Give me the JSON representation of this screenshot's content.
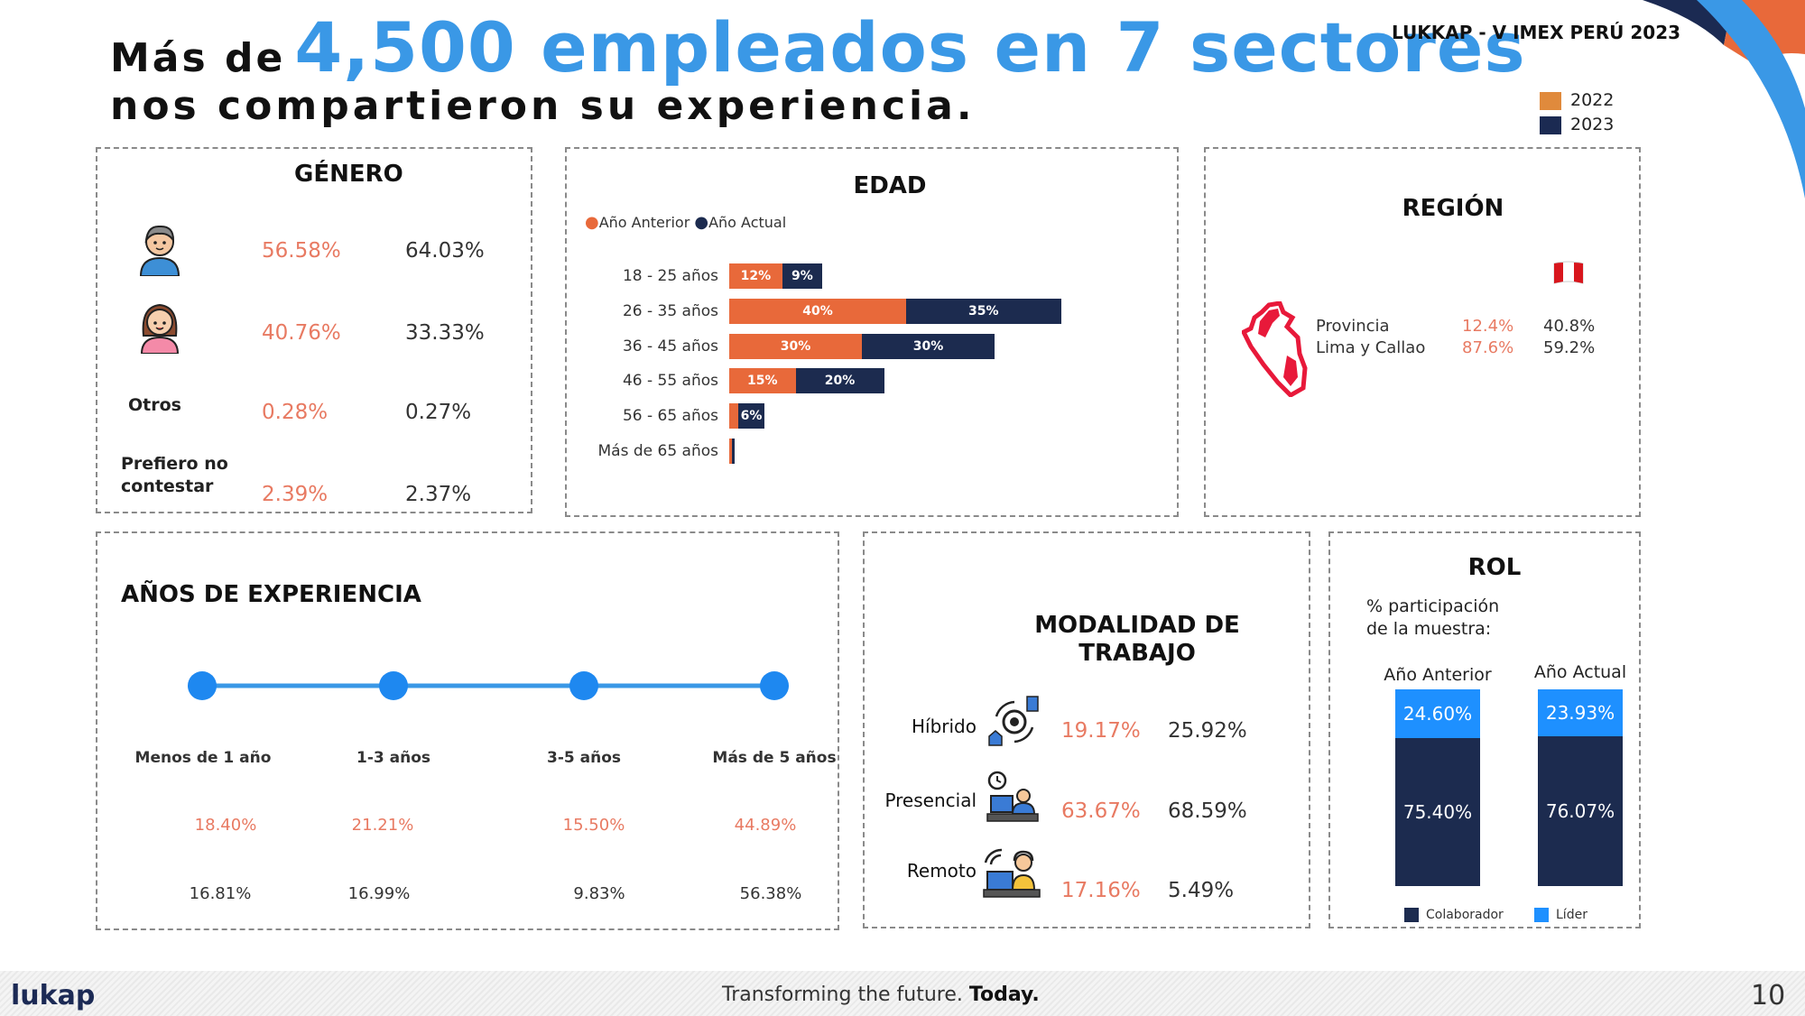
{
  "header": {
    "title_prefix": "Más de",
    "title_highlight": "4,500 empleados en 7 sectores",
    "title_line2": "nos compartieron su experiencia.",
    "event": "LUKKAP - V IMEX PERÚ 2023",
    "legend": [
      {
        "label": "2022",
        "color": "#e08a3c"
      },
      {
        "label": "2023",
        "color": "#1b2a52"
      }
    ]
  },
  "footer": {
    "logo": "lukap",
    "tagline_main": "Transforming the future.",
    "tagline_bold": "Today.",
    "page": "10"
  },
  "colors": {
    "prev": "#e8693a",
    "curr": "#1c2b4f",
    "lider": "#1e90ff",
    "accent_blue": "#3a98e6"
  },
  "genero": {
    "title": "GÉNERO",
    "rows": [
      {
        "label": "",
        "icon": "male-avatar-icon",
        "prev": "56.58%",
        "curr": "64.03%"
      },
      {
        "label": "",
        "icon": "female-avatar-icon",
        "prev": "40.76%",
        "curr": "33.33%"
      },
      {
        "label": "Otros",
        "prev": "0.28%",
        "curr": "0.27%"
      },
      {
        "label": "Prefiero no contestar",
        "prev": "2.39%",
        "curr": "2.37%"
      }
    ]
  },
  "region": {
    "title": "REGIÓN",
    "map_icon": "peru-map-icon",
    "flag_icon": "peru-flag-icon",
    "rows": [
      {
        "label": "Provincia",
        "prev": "12.4%",
        "curr": "40.8%"
      },
      {
        "label": "Lima y Callao",
        "prev": "87.6%",
        "curr": "59.2%"
      }
    ]
  },
  "experiencia": {
    "title": "AÑOS DE EXPERIENCIA",
    "items": [
      {
        "label": "Menos de 1 año",
        "prev": "18.40%",
        "curr": "16.81%"
      },
      {
        "label": "1-3 años",
        "prev": "21.21%",
        "curr": "16.99%"
      },
      {
        "label": "3-5 años",
        "prev": "15.50%",
        "curr": "9.83%"
      },
      {
        "label": "Más de 5 años",
        "prev": "44.89%",
        "curr": "56.38%"
      }
    ]
  },
  "modalidad": {
    "title_line1": "MODALIDAD DE",
    "title_line2": "TRABAJO",
    "items": [
      {
        "label": "Híbrido",
        "icon": "hybrid-work-icon",
        "prev": "19.17%",
        "curr": "25.92%"
      },
      {
        "label": "Presencial",
        "icon": "office-work-icon",
        "prev": "63.67%",
        "curr": "68.59%"
      },
      {
        "label": "Remoto",
        "icon": "remote-work-icon",
        "prev": "17.16%",
        "curr": "5.49%"
      }
    ]
  },
  "rol": {
    "title": "ROL",
    "subtitle_line1": "% participación",
    "subtitle_line2": "de la muestra:"
  },
  "chart_data": [
    {
      "type": "bar",
      "orientation": "horizontal",
      "stacked": true,
      "title": "EDAD",
      "categories": [
        "18 - 25 años",
        "26 - 35 años",
        "36 - 45 años",
        "46 - 55 años",
        "56 - 65 años",
        "Más de 65 años"
      ],
      "series": [
        {
          "name": "Año Anterior",
          "values": [
            12,
            40,
            30,
            15,
            2,
            0.5
          ],
          "labels": [
            "12%",
            "40%",
            "30%",
            "15%",
            "",
            ""
          ]
        },
        {
          "name": "Año Actual",
          "values": [
            9,
            35,
            30,
            20,
            6,
            0.5
          ],
          "labels": [
            "9%",
            "35%",
            "30%",
            "20%",
            "6%",
            ""
          ]
        }
      ],
      "legend": "top-left",
      "unit": "%"
    },
    {
      "type": "bar",
      "stacked": true,
      "title": "ROL",
      "categories": [
        "Año Anterior",
        "Año Actual"
      ],
      "series": [
        {
          "name": "Colaborador",
          "values": [
            75.4,
            76.07
          ],
          "labels": [
            "75.40%",
            "76.07%"
          ]
        },
        {
          "name": "Líder",
          "values": [
            24.6,
            23.93
          ],
          "labels": [
            "24.60%",
            "23.93%"
          ]
        }
      ],
      "ylim": [
        0,
        100
      ],
      "legend": "bottom"
    }
  ]
}
